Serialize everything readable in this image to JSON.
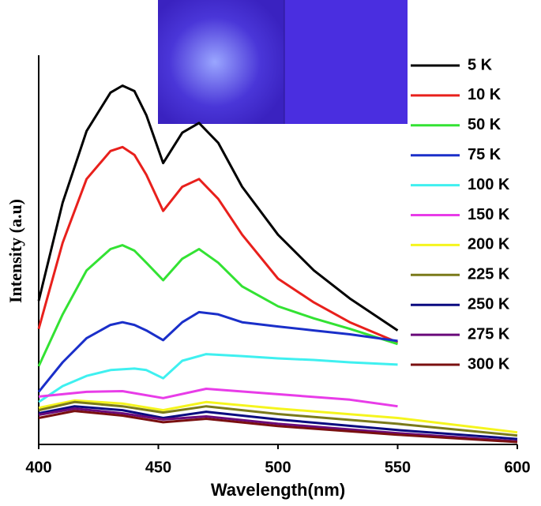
{
  "chart_data": {
    "type": "line",
    "xlabel": "Wavelength(nm)",
    "ylabel": "Intensity (a.u)",
    "xlim": [
      400,
      600
    ],
    "xticks": [
      400,
      450,
      500,
      550,
      600
    ],
    "ylim": [
      0,
      100
    ],
    "series": [
      {
        "name": "5 K",
        "color": "#000000",
        "x": [
          400,
          410,
          420,
          430,
          435,
          440,
          445,
          452,
          460,
          467,
          475,
          485,
          500,
          515,
          530,
          550
        ],
        "values": [
          36.9,
          62.1,
          80.5,
          90.4,
          92.2,
          90.8,
          84.6,
          72.3,
          80.1,
          82.6,
          77.5,
          66.2,
          53.9,
          44.7,
          37.5,
          29.3
        ]
      },
      {
        "name": "10 K",
        "color": "#e8201c",
        "x": [
          400,
          410,
          420,
          430,
          435,
          440,
          445,
          452,
          460,
          467,
          475,
          485,
          500,
          515,
          530,
          550
        ],
        "values": [
          29.7,
          51.8,
          68.2,
          75.4,
          76.4,
          74.4,
          69.3,
          60.0,
          66.2,
          68.2,
          63.1,
          53.9,
          42.6,
          36.5,
          31.4,
          26.2
        ]
      },
      {
        "name": "50 K",
        "color": "#33e233",
        "x": [
          400,
          410,
          420,
          430,
          435,
          440,
          445,
          452,
          460,
          467,
          475,
          485,
          500,
          515,
          530,
          550
        ],
        "values": [
          20.1,
          33.4,
          44.7,
          50.2,
          51.2,
          49.8,
          46.7,
          42.2,
          47.7,
          50.2,
          46.7,
          40.6,
          35.5,
          32.4,
          29.7,
          25.8
        ]
      },
      {
        "name": "75 K",
        "color": "#1a2fc9",
        "x": [
          400,
          410,
          420,
          430,
          435,
          440,
          445,
          452,
          460,
          467,
          475,
          485,
          500,
          515,
          530,
          550
        ],
        "values": [
          13.5,
          21.1,
          27.3,
          30.7,
          31.4,
          30.7,
          29.3,
          26.8,
          31.4,
          34.0,
          33.4,
          31.4,
          30.3,
          29.3,
          28.3,
          26.6
        ]
      },
      {
        "name": "100 K",
        "color": "#3ff0f0",
        "x": [
          400,
          410,
          420,
          430,
          440,
          445,
          452,
          460,
          470,
          485,
          500,
          515,
          530,
          550
        ],
        "values": [
          10.9,
          15.0,
          17.6,
          19.1,
          19.5,
          19.1,
          17.0,
          21.5,
          23.2,
          22.7,
          22.1,
          21.7,
          21.1,
          20.5
        ]
      },
      {
        "name": "150 K",
        "color": "#e83ce8",
        "x": [
          400,
          420,
          435,
          452,
          470,
          500,
          530,
          550
        ],
        "values": [
          12.3,
          13.5,
          13.7,
          11.9,
          14.3,
          12.9,
          11.5,
          9.8
        ]
      },
      {
        "name": "200 K",
        "color": "#f5f51e",
        "x": [
          400,
          415,
          435,
          452,
          470,
          500,
          550,
          600
        ],
        "values": [
          9.4,
          11.3,
          10.5,
          8.8,
          10.9,
          9.2,
          6.8,
          3.1
        ]
      },
      {
        "name": "225 K",
        "color": "#7a7a1a",
        "x": [
          400,
          415,
          435,
          452,
          470,
          500,
          550,
          600
        ],
        "values": [
          8.8,
          10.9,
          9.8,
          8.2,
          9.8,
          7.8,
          5.3,
          2.3
        ]
      },
      {
        "name": "250 K",
        "color": "#0a0a80",
        "x": [
          400,
          415,
          435,
          452,
          470,
          500,
          550,
          600
        ],
        "values": [
          8.0,
          9.8,
          8.8,
          6.8,
          8.4,
          6.4,
          3.7,
          1.4
        ]
      },
      {
        "name": "275 K",
        "color": "#6a0a7a",
        "x": [
          400,
          415,
          435,
          452,
          470,
          500,
          550,
          600
        ],
        "values": [
          7.6,
          9.2,
          8.0,
          6.4,
          7.2,
          5.3,
          2.9,
          0.8
        ]
      },
      {
        "name": "300 K",
        "color": "#7a1010",
        "x": [
          400,
          415,
          435,
          452,
          470,
          500,
          550,
          600
        ],
        "values": [
          6.8,
          8.6,
          7.4,
          5.7,
          6.6,
          4.7,
          2.5,
          0.6
        ]
      }
    ]
  }
}
